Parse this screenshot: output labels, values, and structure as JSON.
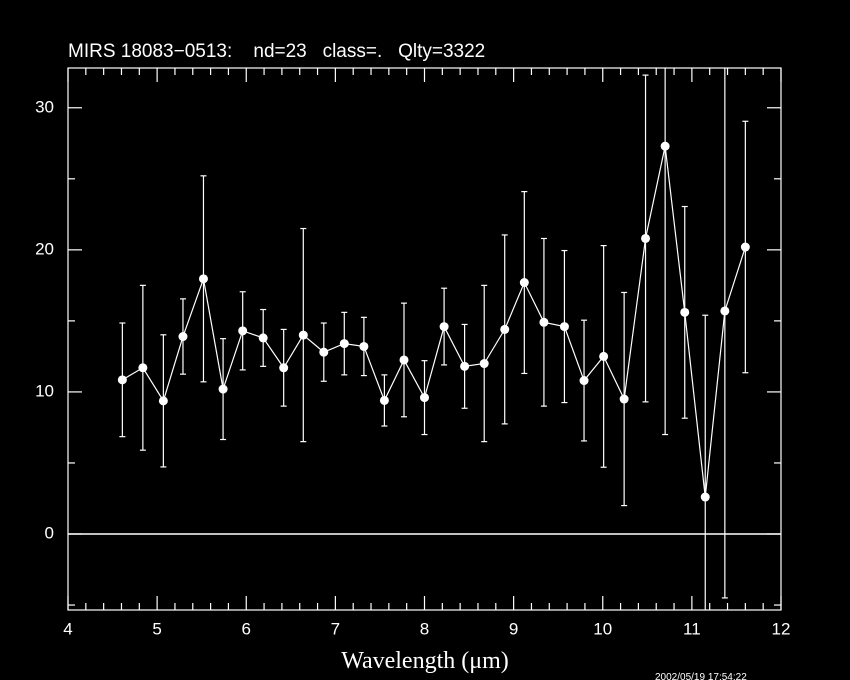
{
  "chart_data": {
    "type": "errorbar",
    "title": "MIRS 18083−0513:    nd=23   class=.   Qlty=3322",
    "x_label": "Wavelength (μm)",
    "timestamp": "2002/05/19 17:54:22",
    "xlim": [
      4,
      12
    ],
    "ylim": [
      -5.35,
      32.8
    ],
    "xticks": [
      4,
      5,
      6,
      7,
      8,
      9,
      10,
      11,
      12
    ],
    "yticks": [
      0,
      10,
      20,
      30
    ],
    "xminorticks": [
      4.2,
      4.4,
      4.6,
      4.8,
      5.2,
      5.4,
      5.6,
      5.8,
      6.2,
      6.4,
      6.6,
      6.8,
      7.2,
      7.4,
      7.6,
      7.8,
      8.2,
      8.4,
      8.6,
      8.8,
      9.2,
      9.4,
      9.6,
      9.8,
      10.2,
      10.4,
      10.6,
      10.8,
      11.2,
      11.4,
      11.6,
      11.8
    ],
    "yminorticks": [
      -5,
      5,
      15,
      25
    ],
    "hline": 0,
    "color": "#ffffff",
    "x": [
      4.61,
      4.84,
      5.07,
      5.29,
      5.52,
      5.74,
      5.96,
      6.19,
      6.42,
      6.64,
      6.87,
      7.1,
      7.32,
      7.55,
      7.77,
      8.0,
      8.22,
      8.45,
      8.67,
      8.9,
      9.12,
      9.34,
      9.57,
      9.79,
      10.01,
      10.24,
      10.48,
      10.7,
      10.92,
      11.15,
      11.37,
      11.6
    ],
    "values": [
      10.85,
      11.7,
      9.37,
      13.9,
      17.96,
      10.2,
      14.3,
      13.8,
      11.7,
      14.0,
      12.8,
      13.4,
      13.2,
      9.4,
      12.25,
      9.6,
      14.6,
      11.8,
      12.0,
      14.4,
      17.7,
      14.9,
      14.6,
      10.8,
      12.5,
      9.5,
      20.8,
      27.3,
      15.6,
      2.6,
      15.7,
      20.2
    ],
    "errors": [
      4.0,
      5.8,
      4.65,
      2.65,
      7.25,
      3.55,
      2.75,
      2.0,
      2.7,
      7.5,
      2.05,
      2.2,
      2.05,
      1.8,
      4.0,
      2.6,
      2.7,
      2.95,
      5.5,
      6.65,
      6.4,
      5.9,
      5.35,
      4.25,
      7.8,
      7.5,
      11.5,
      20.3,
      7.45,
      12.8,
      20.2,
      8.85
    ]
  }
}
